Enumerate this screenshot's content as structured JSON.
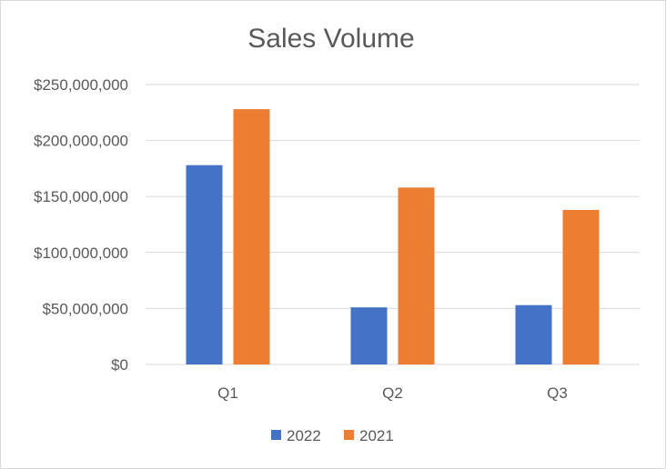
{
  "chart_data": {
    "type": "bar",
    "title": "Sales Volume",
    "xlabel": "",
    "ylabel": "",
    "categories": [
      "Q1",
      "Q2",
      "Q3"
    ],
    "series": [
      {
        "name": "2022",
        "color": "#4472C4",
        "values": [
          178000000,
          51000000,
          53000000
        ]
      },
      {
        "name": "2021",
        "color": "#ED7D31",
        "values": [
          228000000,
          158000000,
          138000000
        ]
      }
    ],
    "ylim": [
      0,
      250000000
    ],
    "y_ticks": [
      0,
      50000000,
      100000000,
      150000000,
      200000000,
      250000000
    ],
    "y_tick_labels": [
      "$0",
      "$50,000,000",
      "$100,000,000",
      "$150,000,000",
      "$200,000,000",
      "$250,000,000"
    ],
    "grid": true,
    "legend_position": "bottom",
    "colors": {
      "gridline": "#d9d9d9",
      "text": "#595959"
    }
  }
}
